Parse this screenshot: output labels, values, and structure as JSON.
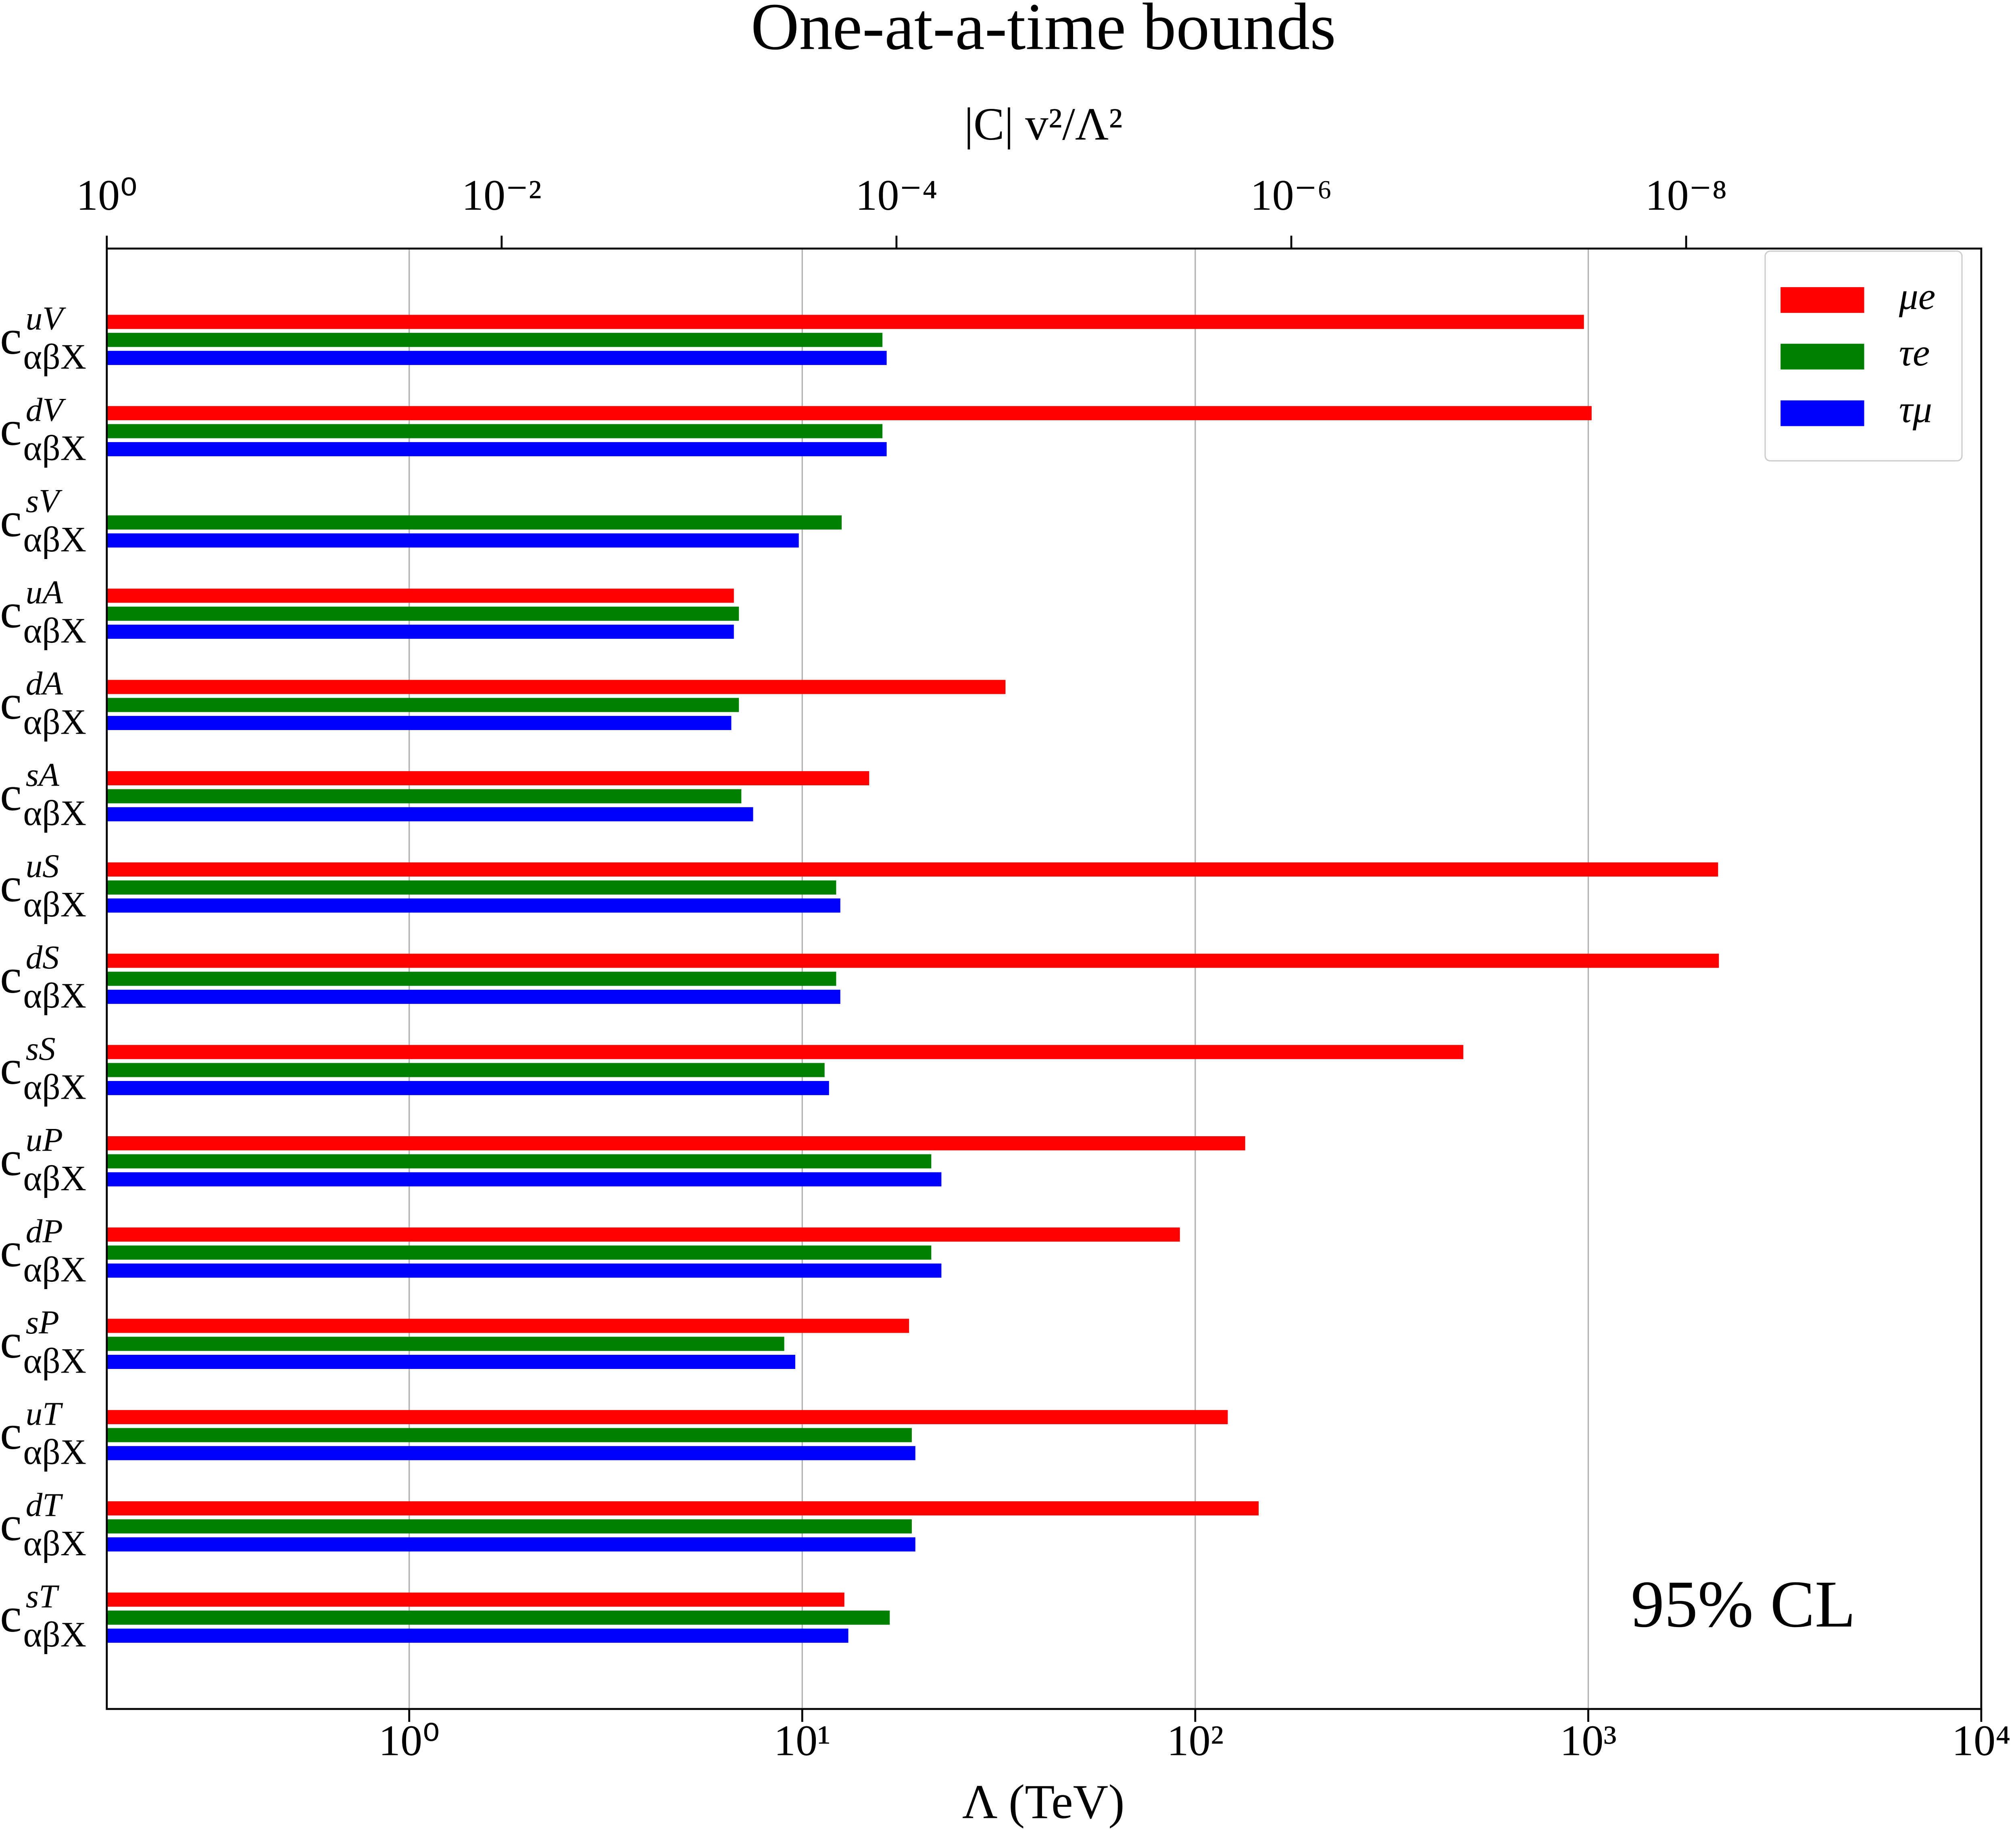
{
  "chart_data": {
    "type": "hbar",
    "title": "One-at-a-time bounds",
    "xlabel": "Λ (TeV)",
    "x2label": "|C| v²/Λ²",
    "label_base": "c",
    "label_subscript": "αβX",
    "categories": [
      "uV",
      "dV",
      "sV",
      "uA",
      "dA",
      "sA",
      "uS",
      "dS",
      "sS",
      "uP",
      "dP",
      "sP",
      "uT",
      "dT",
      "sT"
    ],
    "series": [
      {
        "name": "μe",
        "color": "#ff0000",
        "values": [
          975,
          1020,
          null,
          6.7,
          32.9,
          14.8,
          2140,
          2150,
          481,
          134,
          91.4,
          18.7,
          121,
          145,
          12.8
        ]
      },
      {
        "name": "τe",
        "color": "#008000",
        "values": [
          16.0,
          16.0,
          12.6,
          6.9,
          6.9,
          7.0,
          12.2,
          12.2,
          11.4,
          21.3,
          21.3,
          9.0,
          19.0,
          19.0,
          16.7
        ]
      },
      {
        "name": "τμ",
        "color": "#0000ff",
        "values": [
          16.4,
          16.4,
          9.8,
          6.7,
          6.6,
          7.5,
          12.5,
          12.5,
          11.7,
          22.6,
          22.6,
          9.6,
          19.4,
          19.4,
          13.1
        ]
      }
    ],
    "xscale": "log",
    "xlim": [
      0.17,
      10000
    ],
    "xticks": [
      {
        "value": 1,
        "label": "10⁰"
      },
      {
        "value": 10,
        "label": "10¹"
      },
      {
        "value": 100,
        "label": "10²"
      },
      {
        "value": 1000,
        "label": "10³"
      },
      {
        "value": 10000,
        "label": "10⁴"
      }
    ],
    "x2lim": [
      1,
      3.2e-10
    ],
    "x2ticks": [
      {
        "value": 1,
        "label": "10⁰"
      },
      {
        "value": 0.01,
        "label": "10⁻²"
      },
      {
        "value": 0.0001,
        "label": "10⁻⁴"
      },
      {
        "value": 1e-06,
        "label": "10⁻⁶"
      },
      {
        "value": 1e-08,
        "label": "10⁻⁸"
      }
    ],
    "grid": true,
    "legend": "upper right",
    "annotation": "95% CL"
  }
}
